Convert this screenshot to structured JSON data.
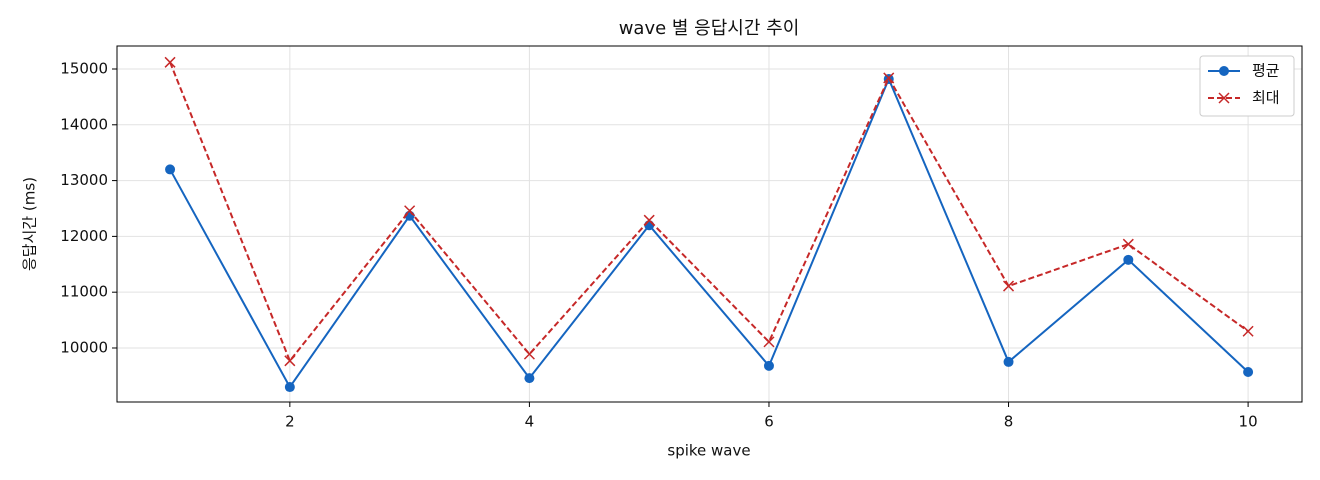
{
  "chart_data": {
    "type": "line",
    "title": "wave 별 응답시간 추이",
    "x_label": "spike wave",
    "y_label": "응답시간 (ms)",
    "x": [
      1,
      2,
      3,
      4,
      5,
      6,
      7,
      8,
      9,
      10
    ],
    "series": [
      {
        "name": "평균",
        "color": "#1565c0",
        "linestyle": "solid",
        "marker": "o",
        "values": [
          13200,
          9300,
          12370,
          9460,
          12200,
          9680,
          14820,
          9750,
          11580,
          9570
        ]
      },
      {
        "name": "최대",
        "color": "#c62828",
        "linestyle": "dashed",
        "marker": "x",
        "values": [
          15120,
          9770,
          12460,
          9890,
          12290,
          10110,
          14840,
          11110,
          11860,
          10300
        ]
      }
    ],
    "xlim": [
      0.557,
      10.45
    ],
    "ylim": [
      9032,
      15412
    ],
    "xticks": [
      2,
      4,
      6,
      8,
      10
    ],
    "yticks": [
      10000,
      11000,
      12000,
      13000,
      14000,
      15000
    ],
    "grid": true,
    "legend": "upper right"
  }
}
